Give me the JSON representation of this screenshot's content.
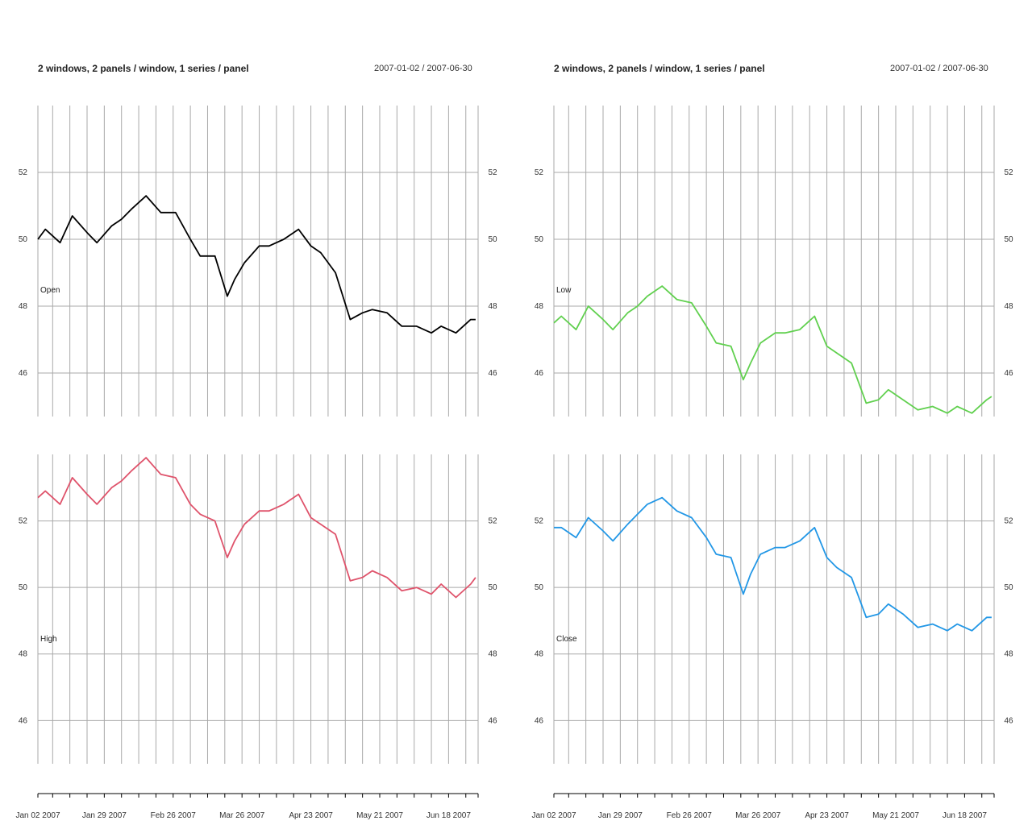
{
  "windows": [
    {
      "title": "2 windows, 2 panels / window, 1 series / panel",
      "date_range": "2007-01-02 / 2007-06-30"
    },
    {
      "title": "2 windows, 2 panels / window, 1 series / panel",
      "date_range": "2007-01-02 / 2007-06-30"
    }
  ],
  "chart_data": [
    {
      "type": "line",
      "window": 1,
      "panel": "top",
      "series": [
        {
          "name": "Open",
          "color": "#000000",
          "x": [
            "2007-01-02",
            "2007-01-05",
            "2007-01-11",
            "2007-01-16",
            "2007-01-22",
            "2007-01-26",
            "2007-02-01",
            "2007-02-05",
            "2007-02-09",
            "2007-02-15",
            "2007-02-21",
            "2007-02-27",
            "2007-03-05",
            "2007-03-09",
            "2007-03-15",
            "2007-03-20",
            "2007-03-23",
            "2007-03-27",
            "2007-04-02",
            "2007-04-06",
            "2007-04-12",
            "2007-04-18",
            "2007-04-23",
            "2007-04-27",
            "2007-05-03",
            "2007-05-09",
            "2007-05-14",
            "2007-05-18",
            "2007-05-24",
            "2007-05-30",
            "2007-06-05",
            "2007-06-11",
            "2007-06-15",
            "2007-06-21",
            "2007-06-27",
            "2007-06-29"
          ],
          "values": [
            50.0,
            50.3,
            49.9,
            50.7,
            50.2,
            49.9,
            50.4,
            50.6,
            50.9,
            51.3,
            50.8,
            50.8,
            50.0,
            49.5,
            49.5,
            48.3,
            48.8,
            49.3,
            49.8,
            49.8,
            50.0,
            50.3,
            49.8,
            49.6,
            49.0,
            47.6,
            47.8,
            47.9,
            47.8,
            47.4,
            47.4,
            47.2,
            47.4,
            47.2,
            47.6,
            47.6
          ]
        }
      ],
      "y_ticks": [
        46,
        48,
        50,
        52
      ],
      "ylim": [
        44.7,
        54.0
      ],
      "grid": true
    },
    {
      "type": "line",
      "window": 1,
      "panel": "bottom",
      "series": [
        {
          "name": "High",
          "color": "#DF536B",
          "x": [
            "2007-01-02",
            "2007-01-05",
            "2007-01-11",
            "2007-01-16",
            "2007-01-22",
            "2007-01-26",
            "2007-02-01",
            "2007-02-05",
            "2007-02-09",
            "2007-02-15",
            "2007-02-21",
            "2007-02-27",
            "2007-03-05",
            "2007-03-09",
            "2007-03-15",
            "2007-03-20",
            "2007-03-23",
            "2007-03-27",
            "2007-04-02",
            "2007-04-06",
            "2007-04-12",
            "2007-04-18",
            "2007-04-23",
            "2007-04-27",
            "2007-05-03",
            "2007-05-09",
            "2007-05-14",
            "2007-05-18",
            "2007-05-24",
            "2007-05-30",
            "2007-06-05",
            "2007-06-11",
            "2007-06-15",
            "2007-06-21",
            "2007-06-27",
            "2007-06-29"
          ],
          "values": [
            52.7,
            52.9,
            52.5,
            53.3,
            52.8,
            52.5,
            53.0,
            53.2,
            53.5,
            53.9,
            53.4,
            53.3,
            52.5,
            52.2,
            52.0,
            50.9,
            51.4,
            51.9,
            52.3,
            52.3,
            52.5,
            52.8,
            52.1,
            51.9,
            51.6,
            50.2,
            50.3,
            50.5,
            50.3,
            49.9,
            50.0,
            49.8,
            50.1,
            49.7,
            50.1,
            50.3
          ]
        }
      ],
      "y_ticks": [
        46,
        48,
        50,
        52
      ],
      "ylim": [
        44.7,
        54.0
      ],
      "grid": true
    },
    {
      "type": "line",
      "window": 2,
      "panel": "top",
      "series": [
        {
          "name": "Low",
          "color": "#61D04F",
          "x": [
            "2007-01-02",
            "2007-01-05",
            "2007-01-11",
            "2007-01-16",
            "2007-01-22",
            "2007-01-26",
            "2007-02-01",
            "2007-02-05",
            "2007-02-09",
            "2007-02-15",
            "2007-02-21",
            "2007-02-27",
            "2007-03-05",
            "2007-03-09",
            "2007-03-15",
            "2007-03-20",
            "2007-03-23",
            "2007-03-27",
            "2007-04-02",
            "2007-04-06",
            "2007-04-12",
            "2007-04-18",
            "2007-04-23",
            "2007-04-27",
            "2007-05-03",
            "2007-05-09",
            "2007-05-14",
            "2007-05-18",
            "2007-05-24",
            "2007-05-30",
            "2007-06-05",
            "2007-06-11",
            "2007-06-15",
            "2007-06-21",
            "2007-06-27",
            "2007-06-29"
          ],
          "values": [
            47.5,
            47.7,
            47.3,
            48.0,
            47.6,
            47.3,
            47.8,
            48.0,
            48.3,
            48.6,
            48.2,
            48.1,
            47.4,
            46.9,
            46.8,
            45.8,
            46.3,
            46.9,
            47.2,
            47.2,
            47.3,
            47.7,
            46.8,
            46.6,
            46.3,
            45.1,
            45.2,
            45.5,
            45.2,
            44.9,
            45.0,
            44.8,
            45.0,
            44.8,
            45.2,
            45.3
          ]
        }
      ],
      "y_ticks": [
        46,
        48,
        50,
        52
      ],
      "ylim": [
        44.7,
        54.0
      ],
      "grid": true
    },
    {
      "type": "line",
      "window": 2,
      "panel": "bottom",
      "series": [
        {
          "name": "Close",
          "color": "#2297E6",
          "x": [
            "2007-01-02",
            "2007-01-05",
            "2007-01-11",
            "2007-01-16",
            "2007-01-22",
            "2007-01-26",
            "2007-02-01",
            "2007-02-05",
            "2007-02-09",
            "2007-02-15",
            "2007-02-21",
            "2007-02-27",
            "2007-03-05",
            "2007-03-09",
            "2007-03-15",
            "2007-03-20",
            "2007-03-23",
            "2007-03-27",
            "2007-04-02",
            "2007-04-06",
            "2007-04-12",
            "2007-04-18",
            "2007-04-23",
            "2007-04-27",
            "2007-05-03",
            "2007-05-09",
            "2007-05-14",
            "2007-05-18",
            "2007-05-24",
            "2007-05-30",
            "2007-06-05",
            "2007-06-11",
            "2007-06-15",
            "2007-06-21",
            "2007-06-27",
            "2007-06-29"
          ],
          "values": [
            51.8,
            51.8,
            51.5,
            52.1,
            51.7,
            51.4,
            51.9,
            52.2,
            52.5,
            52.7,
            52.3,
            52.1,
            51.5,
            51.0,
            50.9,
            49.8,
            50.4,
            51.0,
            51.2,
            51.2,
            51.4,
            51.8,
            50.9,
            50.6,
            50.3,
            49.1,
            49.2,
            49.5,
            49.2,
            48.8,
            48.9,
            48.7,
            48.9,
            48.7,
            49.1,
            49.1
          ]
        }
      ],
      "y_ticks": [
        46,
        48,
        50,
        52
      ],
      "ylim": [
        44.7,
        54.0
      ],
      "grid": true
    }
  ],
  "x_axis": {
    "start": "2007-01-02",
    "end": "2007-06-30",
    "tick_labels": [
      {
        "date": "2007-01-02",
        "label": "Jan 02 2007"
      },
      {
        "date": "2007-01-29",
        "label": "Jan 29 2007"
      },
      {
        "date": "2007-02-26",
        "label": "Feb 26 2007"
      },
      {
        "date": "2007-03-26",
        "label": "Mar 26 2007"
      },
      {
        "date": "2007-04-23",
        "label": "Apr 23 2007"
      },
      {
        "date": "2007-05-21",
        "label": "May 21 2007"
      },
      {
        "date": "2007-06-18",
        "label": "Jun 18 2007"
      }
    ]
  }
}
